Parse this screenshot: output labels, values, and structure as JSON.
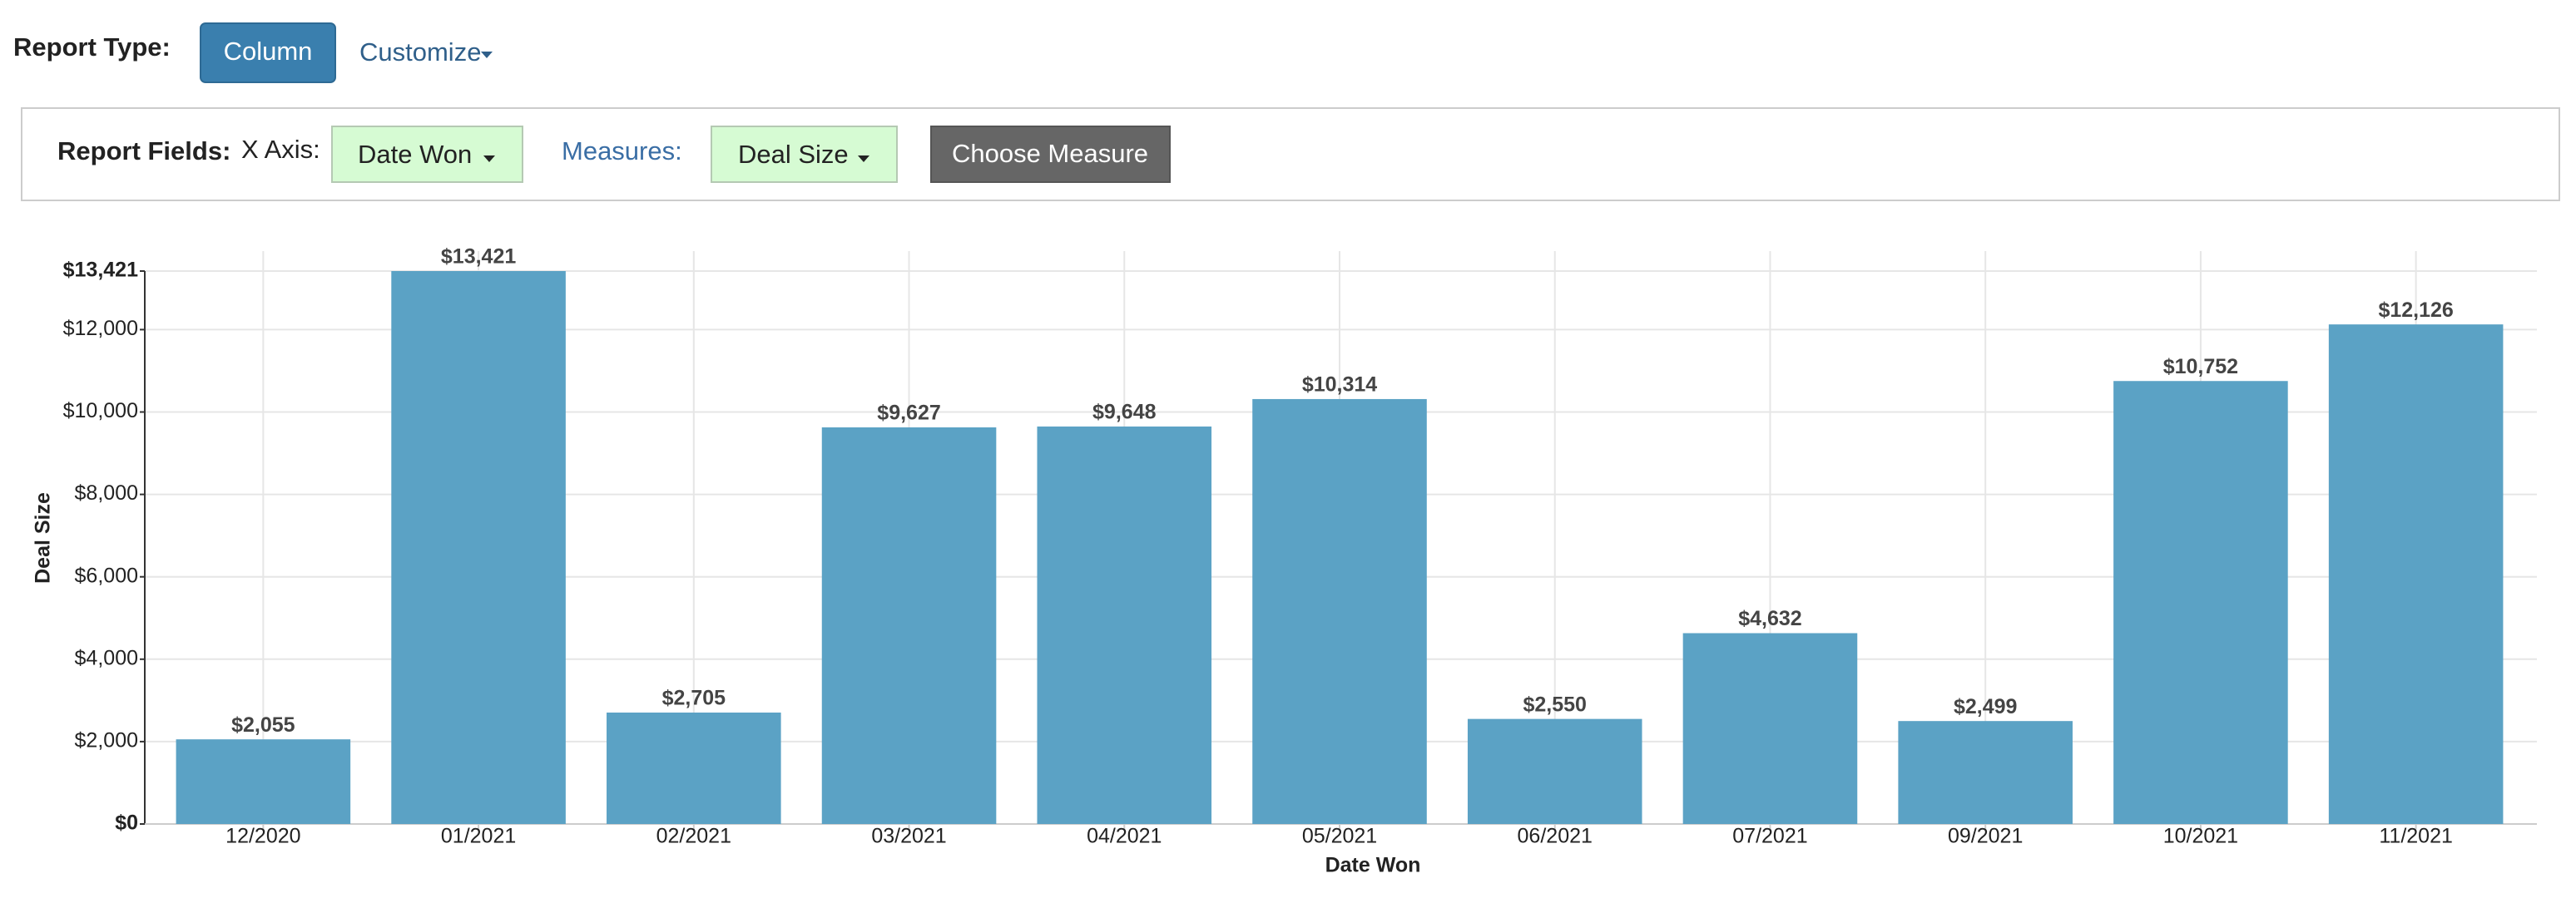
{
  "toolbar": {
    "report_type_label": "Report Type:",
    "report_type_button": "Column",
    "customize": "Customize",
    "report_fields_label": "Report Fields:",
    "x_axis_label": "X Axis:",
    "x_axis_button": "Date Won",
    "measures_label": "Measures:",
    "measure_button": "Deal Size",
    "choose_measure": "Choose Measure"
  },
  "chart_data": {
    "type": "bar",
    "x_label": "Date Won",
    "y_label": "Deal Size",
    "categories": [
      "12/2020",
      "01/2021",
      "02/2021",
      "03/2021",
      "04/2021",
      "05/2021",
      "06/2021",
      "07/2021",
      "09/2021",
      "10/2021",
      "11/2021"
    ],
    "values": [
      2055,
      13421,
      2705,
      9627,
      9648,
      10314,
      2550,
      4632,
      2499,
      10752,
      12126
    ],
    "value_labels": [
      "$2,055",
      "$13,421",
      "$2,705",
      "$9,627",
      "$9,648",
      "$10,314",
      "$2,550",
      "$4,632",
      "$2,499",
      "$10,752",
      "$12,126"
    ],
    "color": "#5ba2c5",
    "ylim": [
      0,
      13421
    ],
    "yticks": [
      {
        "value": 0,
        "label": "$0"
      },
      {
        "value": 2000,
        "label": "$2,000"
      },
      {
        "value": 4000,
        "label": "$4,000"
      },
      {
        "value": 6000,
        "label": "$6,000"
      },
      {
        "value": 8000,
        "label": "$8,000"
      },
      {
        "value": 10000,
        "label": "$10,000"
      },
      {
        "value": 12000,
        "label": "$12,000"
      },
      {
        "value": 13421,
        "label": "$13,421"
      }
    ],
    "grid": true
  }
}
